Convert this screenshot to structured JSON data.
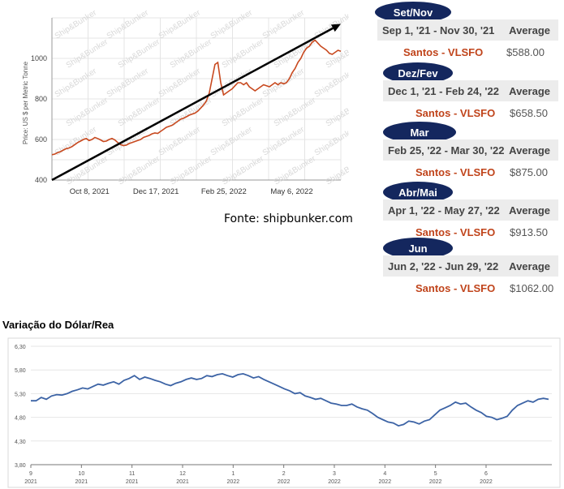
{
  "chart_data": [
    {
      "type": "line",
      "title": "",
      "ylabel": "Price: US $ per Metric Tonne",
      "ylim": [
        400,
        1200
      ],
      "yticks": [
        400,
        600,
        800,
        1000
      ],
      "xtick_labels": [
        "Oct 8, 2021",
        "Dec 17, 2021",
        "Feb 25, 2022",
        "May 6, 2022"
      ],
      "watermark": "Ship&Bunker",
      "series": [
        {
          "values": [
            525,
            528,
            535,
            540,
            548,
            555,
            558,
            565,
            575,
            585,
            592,
            600,
            605,
            595,
            600,
            610,
            605,
            598,
            590,
            592,
            600,
            605,
            598,
            585,
            575,
            570,
            572,
            580,
            585,
            590,
            595,
            600,
            610,
            615,
            620,
            628,
            632,
            630,
            640,
            650,
            660,
            665,
            670,
            680,
            690,
            700,
            705,
            712,
            720,
            725,
            730,
            740,
            755,
            770,
            790,
            830,
            900,
            970,
            980,
            880,
            820,
            830,
            840,
            850,
            865,
            880,
            880,
            870,
            880,
            860,
            850,
            840,
            850,
            860,
            870,
            865,
            860,
            870,
            880,
            870,
            880,
            875,
            880,
            900,
            930,
            950,
            980,
            1000,
            1030,
            1050,
            1060,
            1080,
            1090,
            1075,
            1060,
            1050,
            1040,
            1025,
            1020,
            1030,
            1040,
            1035
          ]
        }
      ],
      "trend_line": {
        "from": [
          0,
          400
        ],
        "to": [
          101,
          1170
        ]
      },
      "source": "Fonte: shipbunker.com"
    },
    {
      "type": "line",
      "title": "Variação do Dólar/Rea",
      "ylim": [
        3.8,
        6.3
      ],
      "yticks": [
        "3,80",
        "4,30",
        "4,80",
        "5,30",
        "5,80",
        "6,30"
      ],
      "xticks": [
        {
          "m": "9",
          "y": "2021"
        },
        {
          "m": "10",
          "y": "2021"
        },
        {
          "m": "11",
          "y": "2021"
        },
        {
          "m": "12",
          "y": "2021"
        },
        {
          "m": "1",
          "y": "2022"
        },
        {
          "m": "2",
          "y": "2022"
        },
        {
          "m": "3",
          "y": "2022"
        },
        {
          "m": "4",
          "y": "2022"
        },
        {
          "m": "5",
          "y": "2022"
        },
        {
          "m": "6",
          "y": "2022"
        }
      ],
      "series": [
        {
          "values": [
            5.15,
            5.15,
            5.22,
            5.18,
            5.25,
            5.28,
            5.27,
            5.3,
            5.35,
            5.38,
            5.42,
            5.4,
            5.45,
            5.5,
            5.48,
            5.52,
            5.55,
            5.5,
            5.58,
            5.62,
            5.68,
            5.6,
            5.65,
            5.62,
            5.58,
            5.55,
            5.5,
            5.47,
            5.52,
            5.55,
            5.6,
            5.63,
            5.6,
            5.62,
            5.68,
            5.66,
            5.7,
            5.72,
            5.68,
            5.65,
            5.7,
            5.72,
            5.68,
            5.63,
            5.66,
            5.6,
            5.55,
            5.5,
            5.45,
            5.4,
            5.36,
            5.3,
            5.32,
            5.25,
            5.22,
            5.18,
            5.2,
            5.15,
            5.1,
            5.08,
            5.05,
            5.05,
            5.08,
            5.02,
            4.98,
            4.95,
            4.88,
            4.8,
            4.75,
            4.7,
            4.68,
            4.62,
            4.65,
            4.72,
            4.7,
            4.66,
            4.72,
            4.75,
            4.85,
            4.95,
            5.0,
            5.05,
            5.12,
            5.08,
            5.1,
            5.02,
            4.95,
            4.9,
            4.82,
            4.8,
            4.75,
            4.78,
            4.82,
            4.95,
            5.05,
            5.1,
            5.15,
            5.12,
            5.18,
            5.2,
            5.18
          ]
        }
      ]
    }
  ],
  "panels": [
    {
      "pill": "Set/Nov",
      "range": "Sep 1, '21 - Nov 30, '21",
      "avg_label": "Average",
      "location": "Santos - VLSFO",
      "price": "$588.00"
    },
    {
      "pill": "Dez/Fev",
      "range": "Dec 1, '21 - Feb 24, '22",
      "avg_label": "Average",
      "location": "Santos - VLSFO",
      "price": "$658.50"
    },
    {
      "pill": "Mar",
      "range": "Feb 25, '22 - Mar 30, '22",
      "avg_label": "Average",
      "location": "Santos - VLSFO",
      "price": "$875.00"
    },
    {
      "pill": "Abr/Mai",
      "range": "Apr 1, '22 - May 27, '22",
      "avg_label": "Average",
      "location": "Santos - VLSFO",
      "price": "$913.50"
    },
    {
      "pill": "Jun",
      "range": "Jun 2, '22 - Jun 29, '22",
      "avg_label": "Average",
      "location": "Santos - VLSFO",
      "price": "$1062.00"
    }
  ],
  "colors": {
    "fuel_line": "#c8491f",
    "fx_line": "#3c63a5",
    "pill_bg": "#14275e",
    "location_text": "#c0441b"
  }
}
